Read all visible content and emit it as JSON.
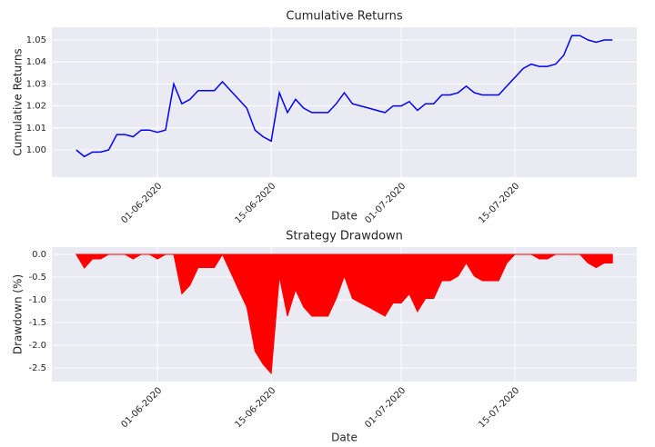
{
  "chart_data": [
    {
      "type": "line",
      "title": "Cumulative Returns",
      "x_label": "Date",
      "y_label": "Cumulative Returns",
      "x": [
        "2020-05-22",
        "2020-05-23",
        "2020-05-24",
        "2020-05-25",
        "2020-05-26",
        "2020-05-27",
        "2020-05-28",
        "2020-05-29",
        "2020-05-30",
        "2020-05-31",
        "2020-06-01",
        "2020-06-02",
        "2020-06-03",
        "2020-06-04",
        "2020-06-05",
        "2020-06-06",
        "2020-06-07",
        "2020-06-08",
        "2020-06-09",
        "2020-06-10",
        "2020-06-11",
        "2020-06-12",
        "2020-06-13",
        "2020-06-14",
        "2020-06-15",
        "2020-06-16",
        "2020-06-17",
        "2020-06-18",
        "2020-06-19",
        "2020-06-20",
        "2020-06-21",
        "2020-06-22",
        "2020-06-23",
        "2020-06-24",
        "2020-06-25",
        "2020-06-26",
        "2020-06-27",
        "2020-06-28",
        "2020-06-29",
        "2020-06-30",
        "2020-07-01",
        "2020-07-02",
        "2020-07-03",
        "2020-07-04",
        "2020-07-05",
        "2020-07-06",
        "2020-07-07",
        "2020-07-08",
        "2020-07-09",
        "2020-07-10",
        "2020-07-11",
        "2020-07-12",
        "2020-07-13",
        "2020-07-14",
        "2020-07-15",
        "2020-07-16",
        "2020-07-17",
        "2020-07-18",
        "2020-07-19",
        "2020-07-20",
        "2020-07-21",
        "2020-07-22",
        "2020-07-23",
        "2020-07-24",
        "2020-07-25",
        "2020-07-26",
        "2020-07-27"
      ],
      "series": [
        {
          "name": "Cumulative Returns",
          "color": "#0000ff",
          "values": [
            1.0,
            0.997,
            0.999,
            0.999,
            1.0,
            1.007,
            1.007,
            1.006,
            1.009,
            1.009,
            1.008,
            1.009,
            1.03,
            1.021,
            1.023,
            1.027,
            1.027,
            1.027,
            1.031,
            1.027,
            1.023,
            1.019,
            1.009,
            1.006,
            1.004,
            1.026,
            1.017,
            1.023,
            1.019,
            1.017,
            1.017,
            1.017,
            1.021,
            1.026,
            1.021,
            1.02,
            1.019,
            1.018,
            1.017,
            1.02,
            1.02,
            1.022,
            1.018,
            1.021,
            1.021,
            1.025,
            1.025,
            1.026,
            1.029,
            1.026,
            1.025,
            1.025,
            1.025,
            1.029,
            1.033,
            1.037,
            1.039,
            1.038,
            1.038,
            1.039,
            1.043,
            1.052,
            1.052,
            1.05,
            1.049,
            1.05,
            1.05
          ]
        }
      ],
      "xlim": [
        "2020-05-19",
        "2020-07-30"
      ],
      "xticks": [
        {
          "value": "2020-06-01",
          "label": "01-06-2020"
        },
        {
          "value": "2020-06-15",
          "label": "15-06-2020"
        },
        {
          "value": "2020-07-01",
          "label": "01-07-2020"
        },
        {
          "value": "2020-07-15",
          "label": "15-07-2020"
        }
      ],
      "ylim": [
        0.9876,
        1.0558
      ],
      "yticks": [
        {
          "value": 1.0,
          "label": "1.00"
        },
        1.01,
        1.02,
        1.03,
        1.04,
        1.05
      ],
      "grid": true
    },
    {
      "type": "area",
      "title": "Strategy Drawdown",
      "x_label": "Date",
      "y_label": "Drawdown (%)",
      "x": [
        "2020-05-22",
        "2020-05-23",
        "2020-05-24",
        "2020-05-25",
        "2020-05-26",
        "2020-05-27",
        "2020-05-28",
        "2020-05-29",
        "2020-05-30",
        "2020-05-31",
        "2020-06-01",
        "2020-06-02",
        "2020-06-03",
        "2020-06-04",
        "2020-06-05",
        "2020-06-06",
        "2020-06-07",
        "2020-06-08",
        "2020-06-09",
        "2020-06-10",
        "2020-06-11",
        "2020-06-12",
        "2020-06-13",
        "2020-06-14",
        "2020-06-15",
        "2020-06-16",
        "2020-06-17",
        "2020-06-18",
        "2020-06-19",
        "2020-06-20",
        "2020-06-21",
        "2020-06-22",
        "2020-06-23",
        "2020-06-24",
        "2020-06-25",
        "2020-06-26",
        "2020-06-27",
        "2020-06-28",
        "2020-06-29",
        "2020-06-30",
        "2020-07-01",
        "2020-07-02",
        "2020-07-03",
        "2020-07-04",
        "2020-07-05",
        "2020-07-06",
        "2020-07-07",
        "2020-07-08",
        "2020-07-09",
        "2020-07-10",
        "2020-07-11",
        "2020-07-12",
        "2020-07-13",
        "2020-07-14",
        "2020-07-15",
        "2020-07-16",
        "2020-07-17",
        "2020-07-18",
        "2020-07-19",
        "2020-07-20",
        "2020-07-21",
        "2020-07-22",
        "2020-07-23",
        "2020-07-24",
        "2020-07-25",
        "2020-07-26",
        "2020-07-27"
      ],
      "series": [
        {
          "name": "Drawdown",
          "color": "#ff0000",
          "values": [
            0,
            -0.3,
            -0.1,
            -0.1,
            0,
            0,
            0,
            -0.1,
            0,
            0,
            -0.1,
            0,
            0,
            -0.87,
            -0.68,
            -0.29,
            -0.29,
            -0.29,
            0,
            -0.39,
            -0.78,
            -1.16,
            -2.13,
            -2.42,
            -2.62,
            -0.48,
            -1.36,
            -0.78,
            -1.16,
            -1.36,
            -1.36,
            -1.36,
            -0.97,
            -0.48,
            -0.97,
            -1.07,
            -1.16,
            -1.26,
            -1.36,
            -1.07,
            -1.07,
            -0.87,
            -1.26,
            -0.97,
            -0.97,
            -0.58,
            -0.58,
            -0.48,
            -0.19,
            -0.48,
            -0.58,
            -0.58,
            -0.58,
            -0.19,
            0,
            0,
            0,
            -0.1,
            -0.1,
            0,
            0,
            0,
            0,
            -0.19,
            -0.29,
            -0.19,
            -0.19
          ]
        }
      ],
      "xlim": [
        "2020-05-19",
        "2020-07-30"
      ],
      "xticks": [
        {
          "value": "2020-06-01",
          "label": "01-06-2020"
        },
        {
          "value": "2020-06-15",
          "label": "15-06-2020"
        },
        {
          "value": "2020-07-01",
          "label": "01-07-2020"
        },
        {
          "value": "2020-07-15",
          "label": "15-07-2020"
        }
      ],
      "ylim": [
        -2.8,
        0.16
      ],
      "yticks": [
        {
          "value": 0,
          "label": "0.0"
        },
        -0.5,
        {
          "value": -1,
          "label": "-1.0"
        },
        -1.5,
        {
          "value": -2,
          "label": "-2.0"
        },
        -2.5
      ],
      "grid": true
    }
  ]
}
